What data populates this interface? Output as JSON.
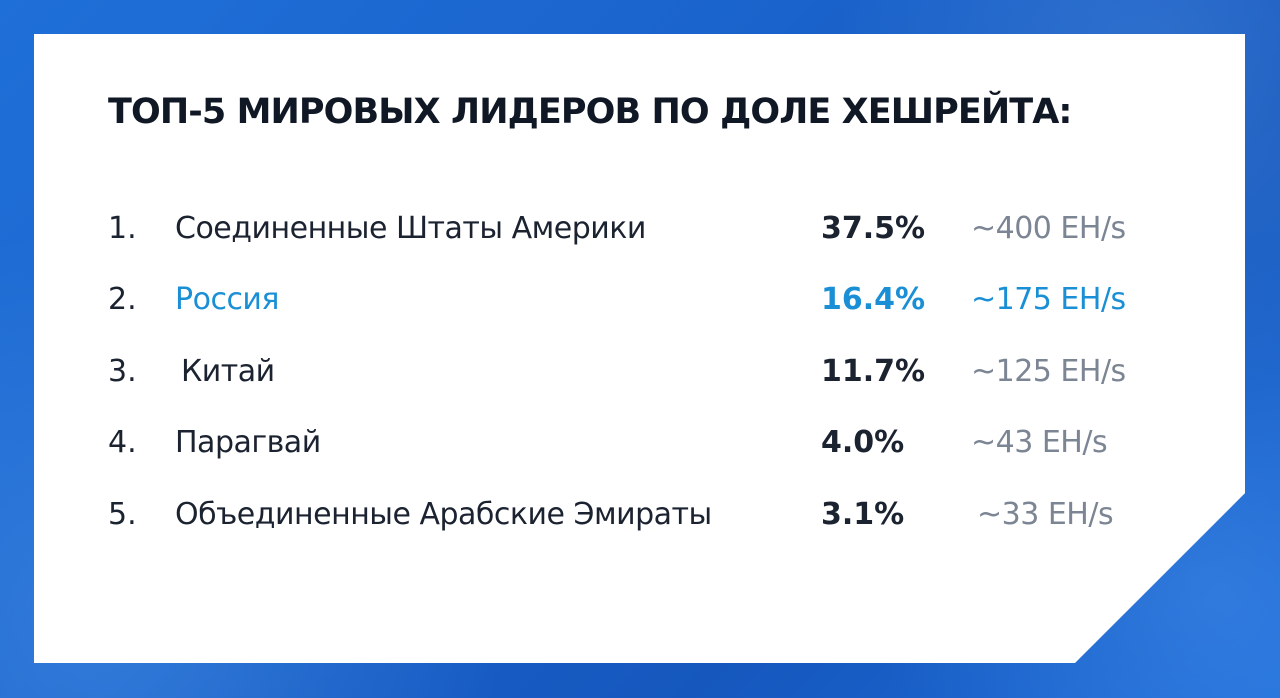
{
  "slide": {
    "title": "ТОП-5 МИРОВЫХ ЛИДЕРОВ ПО ДОЛЕ ХЕШРЕЙТА:",
    "accent_color": "#1a8fd6",
    "background_color": "#1a63cc",
    "rows": [
      {
        "number": "1.",
        "country": "Соединенные Штаты Америки",
        "share": "37.5%",
        "hashrate": "~400 EH/s"
      },
      {
        "number": "2.",
        "country": "Россия",
        "share": "16.4%",
        "hashrate": "~175 EH/s"
      },
      {
        "number": "3.",
        "country": "Китай",
        "share": "11.7%",
        "hashrate": "~125 EH/s"
      },
      {
        "number": "4.",
        "country": "Парагвай",
        "share": "4.0%",
        "hashrate": "~43 EH/s"
      },
      {
        "number": "5.",
        "country": "Объединенные Арабские Эмираты",
        "share": "3.1%",
        "hashrate": "~33 EH/s"
      }
    ]
  }
}
